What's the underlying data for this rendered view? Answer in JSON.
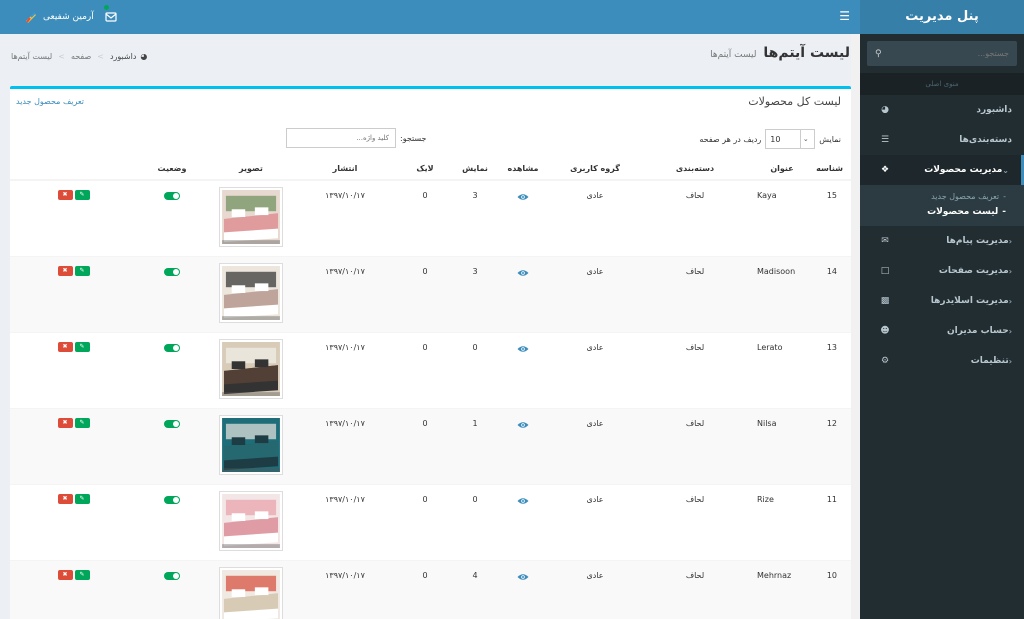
{
  "sidebar": {
    "logo": "پنل مدیریت",
    "search_placeholder": "جستجو...",
    "section_header": "منوی اصلی",
    "items": [
      {
        "label": "داشبورد",
        "icon": "dashboard-icon"
      },
      {
        "label": "دسته‌بندی‌ها",
        "icon": "list-icon"
      },
      {
        "label": "مدیریت محصولات",
        "icon": "cubes-icon"
      },
      {
        "label": "مدیریت پیام‌ها",
        "icon": "envelope-icon"
      },
      {
        "label": "مدیریت صفحات",
        "icon": "file-icon"
      },
      {
        "label": "مدیریت اسلایدرها",
        "icon": "image-icon"
      },
      {
        "label": "حساب مدیران",
        "icon": "user-circle-icon"
      },
      {
        "label": "تنظیمات",
        "icon": "gear-icon"
      }
    ],
    "submenu": {
      "new_product": "تعریف محصول جدید",
      "product_list": "لیست محصولات"
    }
  },
  "topbar": {
    "user_name": "آرمین شفیعی"
  },
  "page": {
    "title": "لیست آیتم‌ها",
    "subtitle": "لیست آیتم‌ها",
    "breadcrumb": [
      "داشبورد",
      "صفحه",
      "لیست آیتم‌ها"
    ]
  },
  "box": {
    "title": "لیست کل محصولات",
    "add_link": "تعریف محصول جدید",
    "length_prefix": "نمایش",
    "length_value": "10",
    "length_suffix": "ردیف در هر صفحه",
    "search_label": "جستجو:",
    "search_placeholder": "کلید واژه..."
  },
  "table": {
    "headers": [
      "شناسه",
      "عنوان",
      "دسته‌بندی",
      "گروه کاربری",
      "مشاهده",
      "نمایش",
      "لایک",
      "انتشار",
      "تصویر",
      "وضعیت",
      ""
    ],
    "rows": [
      {
        "id": "15",
        "title": "Kaya",
        "category": "لحاف",
        "group": "عادی",
        "views": "3",
        "likes": "0",
        "date": "۱۳۹۷/۱۰/۱۷"
      },
      {
        "id": "14",
        "title": "Madisoon",
        "category": "لحاف",
        "group": "عادی",
        "views": "3",
        "likes": "0",
        "date": "۱۳۹۷/۱۰/۱۷"
      },
      {
        "id": "13",
        "title": "Lerato",
        "category": "لحاف",
        "group": "عادی",
        "views": "0",
        "likes": "0",
        "date": "۱۳۹۷/۱۰/۱۷"
      },
      {
        "id": "12",
        "title": "Nilsa",
        "category": "لحاف",
        "group": "عادی",
        "views": "1",
        "likes": "0",
        "date": "۱۳۹۷/۱۰/۱۷"
      },
      {
        "id": "11",
        "title": "Rize",
        "category": "لحاف",
        "group": "عادی",
        "views": "0",
        "likes": "0",
        "date": "۱۳۹۷/۱۰/۱۷"
      },
      {
        "id": "10",
        "title": "Mehrnaz",
        "category": "لحاف",
        "group": "عادی",
        "views": "4",
        "likes": "0",
        "date": "۱۳۹۷/۱۰/۱۷"
      }
    ]
  },
  "colors": {
    "header": "#3c8dbc",
    "sidebar": "#222d32",
    "accent": "#00c0ef",
    "success": "#00a65a",
    "danger": "#dd4b39"
  }
}
